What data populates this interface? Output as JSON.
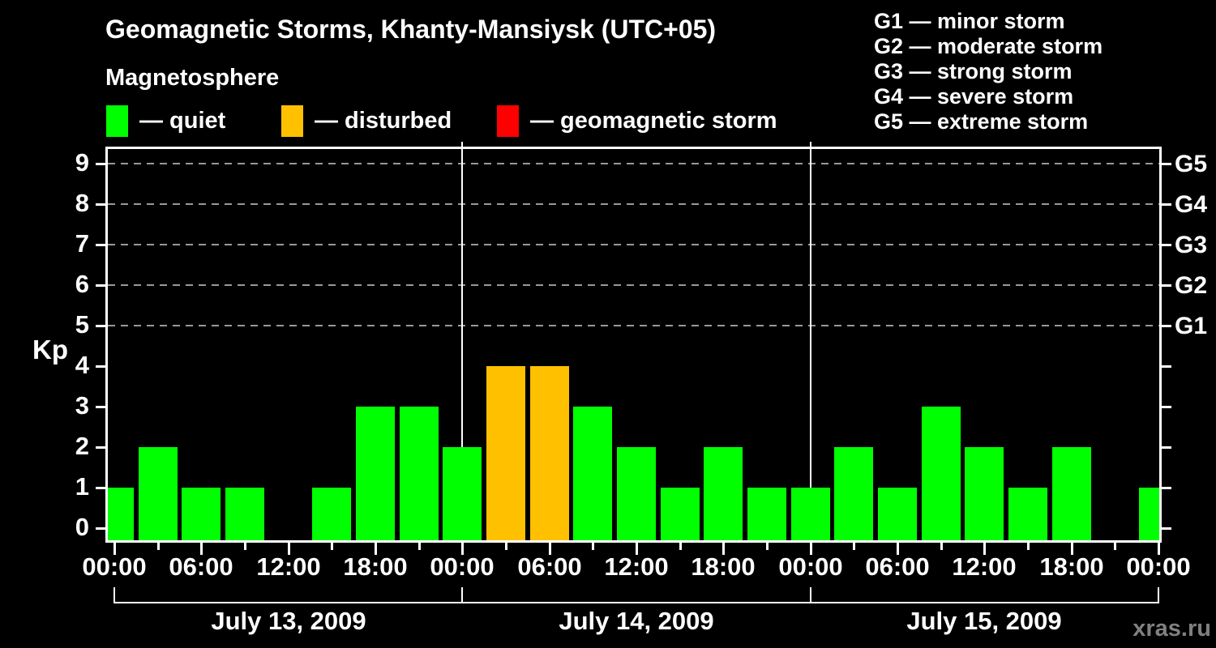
{
  "page": {
    "background": "#000000",
    "text_color": "#FFFFFF"
  },
  "header": {
    "title": "Geomagnetic Storms, Khanty-Mansiysk (UTC+05)",
    "subtitle": "Magnetosphere"
  },
  "kp_legend": [
    {
      "label": "— quiet",
      "color": "#00FF00"
    },
    {
      "label": "— disturbed",
      "color": "#FFC000"
    },
    {
      "label": "— geomagnetic storm",
      "color": "#FF0000"
    }
  ],
  "storm_scale_legend": [
    "G1 — minor storm",
    "G2 — moderate storm",
    "G3 — strong storm",
    "G4 — severe storm",
    "G5 — extreme storm"
  ],
  "watermark": "xras.ru",
  "chart_data": {
    "type": "bar",
    "title": "Geomagnetic Storms, Khanty-Mansiysk (UTC+05)",
    "ylabel": "Kp",
    "ylim": [
      0,
      9
    ],
    "y_ticks": [
      0,
      1,
      2,
      3,
      4,
      5,
      6,
      7,
      8,
      9
    ],
    "gridlines_at_kp": [
      5,
      6,
      7,
      8,
      9
    ],
    "grid_color": "#999999",
    "grid_style": "dashed",
    "hours_per_bar": 3,
    "time_labels": [
      "00:00",
      "06:00",
      "12:00",
      "18:00"
    ],
    "days": [
      {
        "label": "July 13, 2009",
        "kp": [
          1,
          2,
          1,
          1,
          0,
          1,
          3,
          3
        ]
      },
      {
        "label": "July 14, 2009",
        "kp": [
          2,
          4,
          4,
          3,
          2,
          1,
          2,
          1
        ]
      },
      {
        "label": "July 15, 2009",
        "kp": [
          1,
          2,
          1,
          3,
          2,
          1,
          2,
          0
        ]
      }
    ],
    "final_bar_kp": 1,
    "state_colors": {
      "quiet": "#00FF00",
      "disturbed": "#FFC000",
      "storm": "#FF0000"
    },
    "state_rules": {
      "quiet_kp_max": 3,
      "disturbed_kp_max": 5
    },
    "right_axis_labels": [
      {
        "kp": 5,
        "label": "G1"
      },
      {
        "kp": 6,
        "label": "G2"
      },
      {
        "kp": 7,
        "label": "G3"
      },
      {
        "kp": 8,
        "label": "G4"
      },
      {
        "kp": 9,
        "label": "G5"
      }
    ]
  }
}
